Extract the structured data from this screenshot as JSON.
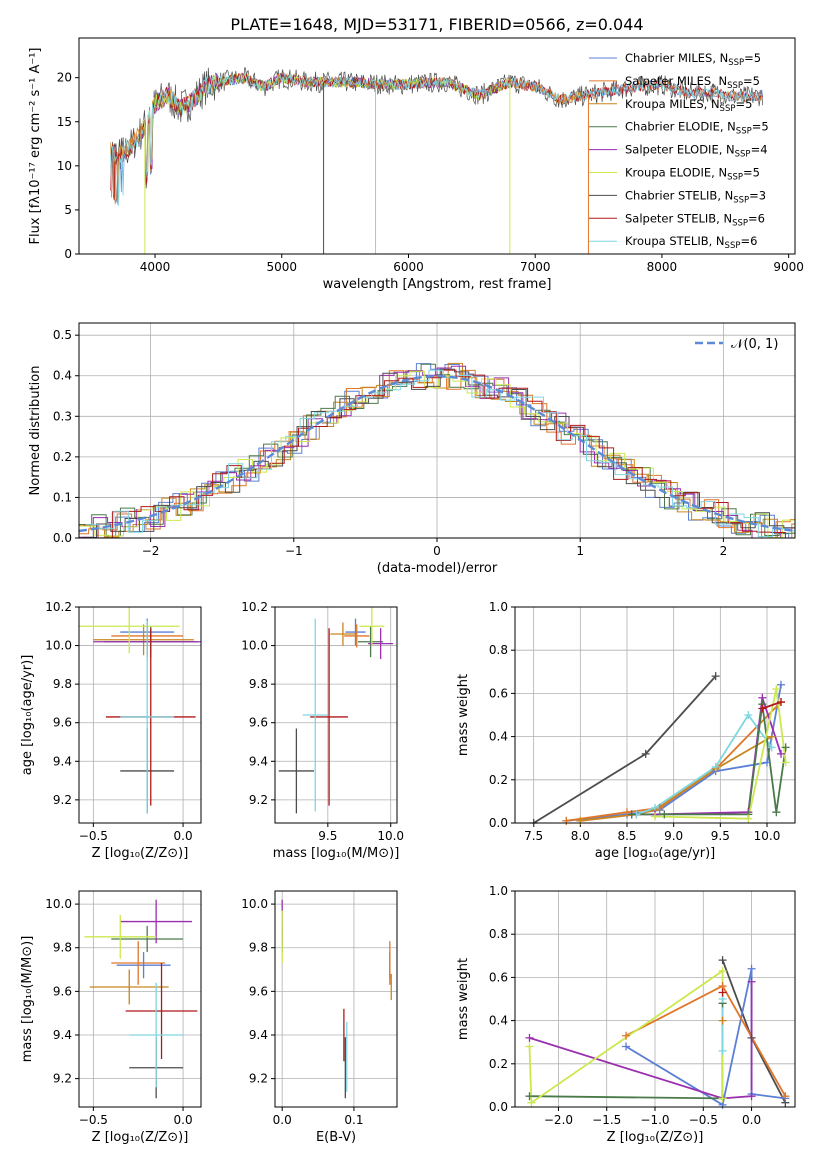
{
  "figure_title": "PLATE=1648, MJD=53171, FIBERID=0566, z=0.044",
  "colors": {
    "chabrier_miles": "#5b7fd6",
    "salpeter_miles": "#e0762a",
    "kroupa_miles": "#c9861e",
    "chabrier_elodie": "#4a7a4a",
    "salpeter_elodie": "#9a2fb0",
    "kroupa_elodie": "#cbe84e",
    "chabrier_stelib": "#4d4d4d",
    "salpeter_stelib": "#b0181a",
    "kroupa_stelib": "#7fd6e0",
    "normal_curve": "#5b8bd6",
    "grid": "#b0b0b0"
  },
  "chart_data": [
    {
      "id": "spectrum",
      "type": "line",
      "title": "PLATE=1648, MJD=53171, FIBERID=0566, z=0.044",
      "xlabel": "wavelength [Angstrom, rest frame]",
      "ylabel": "Flux [fλ10⁻¹⁷ erg cm⁻² s⁻¹ A⁻¹]",
      "xlim": [
        3400,
        9050
      ],
      "ylim": [
        0,
        24.5
      ],
      "xticks": [
        4000,
        5000,
        6000,
        7000,
        8000,
        9000
      ],
      "yticks": [
        0,
        5,
        10,
        15,
        20
      ],
      "grid": false,
      "legend_position": "top-right",
      "continuum": [
        [
          3650,
          12
        ],
        [
          3700,
          11
        ],
        [
          3800,
          12
        ],
        [
          3900,
          14
        ],
        [
          4000,
          17
        ],
        [
          4100,
          18
        ],
        [
          4200,
          16.5
        ],
        [
          4300,
          17.5
        ],
        [
          4400,
          19
        ],
        [
          4500,
          19.5
        ],
        [
          4700,
          20
        ],
        [
          4861,
          19
        ],
        [
          5000,
          20
        ],
        [
          5200,
          19.5
        ],
        [
          5500,
          19.5
        ],
        [
          5900,
          19.2
        ],
        [
          6300,
          19.5
        ],
        [
          6563,
          18
        ],
        [
          6800,
          19.5
        ],
        [
          7000,
          19
        ],
        [
          7200,
          17.5
        ],
        [
          7600,
          18.5
        ],
        [
          7800,
          19
        ],
        [
          8000,
          19.2
        ],
        [
          8200,
          18.3
        ],
        [
          8400,
          18.3
        ],
        [
          8600,
          17.8
        ],
        [
          8800,
          18
        ]
      ],
      "series": [
        {
          "name": "Chabrier MILES, N_SSP=5",
          "color_key": "chabrier_miles",
          "xrange": [
            3650,
            8800
          ]
        },
        {
          "name": "Salpeter MILES, N_SSP=5",
          "color_key": "salpeter_miles",
          "xrange": [
            3650,
            8800
          ]
        },
        {
          "name": "Kroupa MILES, N_SSP=5",
          "color_key": "kroupa_miles",
          "xrange": [
            3650,
            7400
          ]
        },
        {
          "name": "Chabrier ELODIE, N_SSP=5",
          "color_key": "chabrier_elodie",
          "xrange": [
            3900,
            6800
          ]
        },
        {
          "name": "Salpeter ELODIE, N_SSP=4",
          "color_key": "salpeter_elodie",
          "xrange": [
            3900,
            6800
          ]
        },
        {
          "name": "Kroupa ELODIE, N_SSP=5",
          "color_key": "kroupa_elodie",
          "xrange": [
            3900,
            6800
          ]
        },
        {
          "name": "Chabrier STELIB, N_SSP=3",
          "color_key": "chabrier_stelib",
          "xrange": [
            3650,
            8800
          ]
        },
        {
          "name": "Salpeter STELIB, N_SSP=6",
          "color_key": "salpeter_stelib",
          "xrange": [
            3650,
            8800
          ]
        },
        {
          "name": "Kroupa STELIB, N_SSP=6",
          "color_key": "kroupa_stelib",
          "xrange": [
            3650,
            8800
          ]
        }
      ],
      "drops": [
        {
          "x": 3920,
          "color_key": "kroupa_elodie"
        },
        {
          "x": 5330,
          "color_key": "chabrier_stelib"
        },
        {
          "x": 5740,
          "color_key": "kroupa_stelib"
        },
        {
          "x": 6800,
          "color_key": "kroupa_elodie"
        },
        {
          "x": 7420,
          "color_key": "salpeter_miles"
        }
      ]
    },
    {
      "id": "residuals",
      "type": "line",
      "xlabel": "(data-model)/error",
      "ylabel": "Normed distribution",
      "xlim": [
        -2.5,
        2.5
      ],
      "ylim": [
        0,
        0.53
      ],
      "xticks": [
        -2,
        -1,
        0,
        1,
        2
      ],
      "yticks": [
        0.0,
        0.1,
        0.2,
        0.3,
        0.4,
        0.5
      ],
      "grid": true,
      "legend_position": "top-right",
      "series": [
        {
          "name": "𝒩(0, 1)",
          "color_key": "normal_curve",
          "style": "dashed"
        }
      ],
      "histograms": [
        "chabrier_miles",
        "salpeter_miles",
        "kroupa_miles",
        "chabrier_elodie",
        "salpeter_elodie",
        "kroupa_elodie",
        "chabrier_stelib",
        "salpeter_stelib",
        "kroupa_stelib"
      ]
    },
    {
      "id": "age_vs_z",
      "type": "scatter",
      "xlabel": "Z [log₁₀(Z/Z⊙)]",
      "ylabel": "age  [log₁₀(age/yr)]",
      "xlim": [
        -0.58,
        0.1
      ],
      "ylim": [
        9.08,
        10.2
      ],
      "xticks": [
        -0.5,
        0.0
      ],
      "yticks": [
        9.2,
        9.4,
        9.6,
        9.8,
        10.0,
        10.2
      ],
      "grid": true,
      "points": [
        {
          "color_key": "chabrier_miles",
          "x": -0.2,
          "y": 10.07,
          "xerr": 0.15,
          "yerr": 0.07
        },
        {
          "color_key": "salpeter_miles",
          "x": -0.2,
          "y": 10.05,
          "xerr": 0.2,
          "yerr": 0.06
        },
        {
          "color_key": "kroupa_miles",
          "x": -0.22,
          "y": 10.03,
          "xerr": 0.28,
          "yerr": 0.08
        },
        {
          "color_key": "chabrier_elodie",
          "x": -0.18,
          "y": 10.02,
          "xerr": 0.26,
          "yerr": 0.08
        },
        {
          "color_key": "salpeter_elodie",
          "x": -0.2,
          "y": 10.02,
          "xerr": 0.3,
          "yerr": 0.08
        },
        {
          "color_key": "kroupa_elodie",
          "x": -0.3,
          "y": 10.1,
          "xerr": 0.28,
          "yerr": 0.14
        },
        {
          "color_key": "chabrier_stelib",
          "x": -0.2,
          "y": 9.35,
          "xerr": 0.15,
          "yerr": 0.22
        },
        {
          "color_key": "salpeter_stelib",
          "x": -0.18,
          "y": 9.63,
          "xerr": 0.25,
          "yerr": 0.46
        },
        {
          "color_key": "kroupa_stelib",
          "x": -0.2,
          "y": 9.63,
          "xerr": 0.15,
          "yerr": 0.5
        }
      ]
    },
    {
      "id": "age_vs_mass",
      "type": "scatter",
      "xlabel": "mass [log₁₀(M/M⊙)]",
      "ylim": [
        9.08,
        10.2
      ],
      "xlim": [
        9.08,
        10.05
      ],
      "xticks": [
        9.5,
        10.0
      ],
      "yticks": [
        9.2,
        9.4,
        9.6,
        9.8,
        10.0,
        10.2
      ],
      "grid": true,
      "points": [
        {
          "color_key": "chabrier_miles",
          "x": 9.72,
          "y": 10.07,
          "xerr": 0.08,
          "yerr": 0.07
        },
        {
          "color_key": "salpeter_miles",
          "x": 9.73,
          "y": 10.05,
          "xerr": 0.1,
          "yerr": 0.06
        },
        {
          "color_key": "kroupa_miles",
          "x": 9.62,
          "y": 10.06,
          "xerr": 0.1,
          "yerr": 0.06
        },
        {
          "color_key": "chabrier_elodie",
          "x": 9.84,
          "y": 10.02,
          "xerr": 0.1,
          "yerr": 0.08
        },
        {
          "color_key": "salpeter_elodie",
          "x": 9.92,
          "y": 10.01,
          "xerr": 0.1,
          "yerr": 0.08
        },
        {
          "color_key": "kroupa_elodie",
          "x": 9.85,
          "y": 10.1,
          "xerr": 0.1,
          "yerr": 0.1
        },
        {
          "color_key": "chabrier_stelib",
          "x": 9.25,
          "y": 9.35,
          "xerr": 0.14,
          "yerr": 0.22
        },
        {
          "color_key": "salpeter_stelib",
          "x": 9.51,
          "y": 9.63,
          "xerr": 0.15,
          "yerr": 0.46
        },
        {
          "color_key": "kroupa_stelib",
          "x": 9.4,
          "y": 9.64,
          "xerr": 0.1,
          "yerr": 0.5
        }
      ]
    },
    {
      "id": "mass_weight_vs_age",
      "type": "line",
      "xlabel": "age  [log₁₀(age/yr)]",
      "ylabel": "mass weight",
      "xlim": [
        7.3,
        10.3
      ],
      "ylim": [
        0.0,
        1.0
      ],
      "xticks": [
        7.5,
        8.0,
        8.5,
        9.0,
        9.5,
        10.0
      ],
      "yticks": [
        0.0,
        0.2,
        0.4,
        0.6,
        0.8,
        1.0
      ],
      "grid": true,
      "series": [
        {
          "color_key": "chabrier_stelib",
          "points": [
            [
              7.5,
              0.0
            ],
            [
              8.7,
              0.32
            ],
            [
              9.45,
              0.68
            ]
          ]
        },
        {
          "color_key": "chabrier_miles",
          "points": [
            [
              7.85,
              0.01
            ],
            [
              8.5,
              0.04
            ],
            [
              8.85,
              0.06
            ],
            [
              9.45,
              0.24
            ],
            [
              10.0,
              0.28
            ],
            [
              10.15,
              0.64
            ]
          ]
        },
        {
          "color_key": "salpeter_miles",
          "points": [
            [
              7.85,
              0.01
            ],
            [
              8.5,
              0.05
            ],
            [
              8.85,
              0.07
            ],
            [
              9.45,
              0.25
            ],
            [
              10.15,
              0.56
            ]
          ]
        },
        {
          "color_key": "kroupa_miles",
          "points": [
            [
              8.0,
              0.01
            ],
            [
              8.6,
              0.04
            ],
            [
              8.8,
              0.06
            ],
            [
              9.45,
              0.25
            ],
            [
              10.05,
              0.4
            ]
          ]
        },
        {
          "color_key": "kroupa_stelib",
          "points": [
            [
              8.6,
              0.04
            ],
            [
              8.8,
              0.07
            ],
            [
              9.45,
              0.26
            ],
            [
              9.8,
              0.5
            ],
            [
              10.05,
              0.35
            ]
          ]
        },
        {
          "color_key": "salpeter_elodie",
          "points": [
            [
              8.55,
              0.04
            ],
            [
              8.8,
              0.04
            ],
            [
              9.8,
              0.05
            ],
            [
              9.95,
              0.58
            ],
            [
              10.15,
              0.32
            ]
          ]
        },
        {
          "color_key": "chabrier_elodie",
          "points": [
            [
              8.55,
              0.04
            ],
            [
              8.9,
              0.04
            ],
            [
              9.8,
              0.04
            ],
            [
              9.95,
              0.55
            ],
            [
              10.1,
              0.05
            ],
            [
              10.2,
              0.35
            ]
          ]
        },
        {
          "color_key": "kroupa_elodie",
          "points": [
            [
              8.8,
              0.03
            ],
            [
              9.8,
              0.02
            ],
            [
              10.1,
              0.62
            ],
            [
              10.2,
              0.28
            ]
          ]
        },
        {
          "color_key": "salpeter_stelib",
          "points": [
            [
              9.95,
              0.53
            ],
            [
              10.15,
              0.56
            ]
          ]
        }
      ]
    },
    {
      "id": "mass_vs_z",
      "type": "scatter",
      "xlabel": "Z [log₁₀(Z/Z⊙)]",
      "ylabel": "mass [log₁₀(M/M⊙)]",
      "xlim": [
        -0.58,
        0.1
      ],
      "ylim": [
        9.07,
        10.06
      ],
      "xticks": [
        -0.5,
        0.0
      ],
      "yticks": [
        9.2,
        9.4,
        9.6,
        9.8,
        10.0
      ],
      "grid": true,
      "points": [
        {
          "color_key": "chabrier_miles",
          "x": -0.22,
          "y": 9.72,
          "xerr": 0.15,
          "yerr": 0.06
        },
        {
          "color_key": "salpeter_miles",
          "x": -0.25,
          "y": 9.73,
          "xerr": 0.15,
          "yerr": 0.1
        },
        {
          "color_key": "kroupa_miles",
          "x": -0.3,
          "y": 9.62,
          "xerr": 0.22,
          "yerr": 0.08
        },
        {
          "color_key": "chabrier_elodie",
          "x": -0.2,
          "y": 9.84,
          "xerr": 0.2,
          "yerr": 0.06
        },
        {
          "color_key": "salpeter_elodie",
          "x": -0.15,
          "y": 9.92,
          "xerr": 0.2,
          "yerr": 0.1
        },
        {
          "color_key": "kroupa_elodie",
          "x": -0.35,
          "y": 9.85,
          "xerr": 0.2,
          "yerr": 0.1
        },
        {
          "color_key": "chabrier_stelib",
          "x": -0.15,
          "y": 9.25,
          "xerr": 0.15,
          "yerr": 0.14
        },
        {
          "color_key": "salpeter_stelib",
          "x": -0.12,
          "y": 9.51,
          "xerr": 0.2,
          "yerr": 0.22
        },
        {
          "color_key": "kroupa_stelib",
          "x": -0.15,
          "y": 9.4,
          "xerr": 0.15,
          "yerr": 0.24
        }
      ]
    },
    {
      "id": "mass_vs_ebv",
      "type": "scatter",
      "xlabel": "E(B-V)",
      "xlim": [
        -0.01,
        0.16
      ],
      "ylim": [
        9.07,
        10.06
      ],
      "xticks": [
        0.0,
        0.1
      ],
      "yticks": [
        9.2,
        9.4,
        9.6,
        9.8,
        10.0
      ],
      "grid": true,
      "points": [
        {
          "color_key": "chabrier_miles",
          "x": 0.15,
          "y": 9.72,
          "yerr": 0.06
        },
        {
          "color_key": "salpeter_miles",
          "x": 0.15,
          "y": 9.73,
          "yerr": 0.1
        },
        {
          "color_key": "kroupa_miles",
          "x": 0.152,
          "y": 9.62,
          "yerr": 0.06
        },
        {
          "color_key": "chabrier_elodie",
          "x": 0.0,
          "y": 9.84,
          "yerr": 0.06
        },
        {
          "color_key": "salpeter_elodie",
          "x": 0.0,
          "y": 9.92,
          "yerr": 0.1
        },
        {
          "color_key": "kroupa_elodie",
          "x": 0.0,
          "y": 9.85,
          "yerr": 0.12
        },
        {
          "color_key": "chabrier_stelib",
          "x": 0.088,
          "y": 9.25,
          "yerr": 0.14
        },
        {
          "color_key": "salpeter_stelib",
          "x": 0.086,
          "y": 9.4,
          "yerr": 0.12
        },
        {
          "color_key": "kroupa_stelib",
          "x": 0.09,
          "y": 9.3,
          "yerr": 0.16
        }
      ]
    },
    {
      "id": "mass_weight_vs_z",
      "type": "line",
      "xlabel": "Z [log₁₀(Z/Z⊙)]",
      "ylabel": "mass weight",
      "xlim": [
        -2.45,
        0.45
      ],
      "ylim": [
        0.0,
        1.0
      ],
      "xticks": [
        -2.0,
        -1.5,
        -1.0,
        -0.5,
        0.0
      ],
      "yticks": [
        0.0,
        0.2,
        0.4,
        0.6,
        0.8,
        1.0
      ],
      "grid": true,
      "series": [
        {
          "color_key": "chabrier_stelib",
          "points": [
            [
              -0.3,
              0.68
            ],
            [
              0.0,
              0.32
            ],
            [
              0.35,
              0.02
            ]
          ]
        },
        {
          "color_key": "chabrier_miles",
          "points": [
            [
              -1.3,
              0.28
            ],
            [
              -0.3,
              0.01
            ],
            [
              0.0,
              0.64
            ],
            [
              0.0,
              0.06
            ],
            [
              0.35,
              0.04
            ]
          ]
        },
        {
          "color_key": "salpeter_miles",
          "points": [
            [
              -1.3,
              0.33
            ],
            [
              -0.3,
              0.56
            ],
            [
              0.35,
              0.05
            ]
          ]
        },
        {
          "color_key": "kroupa_miles",
          "points": [
            [
              -0.3,
              0.4
            ],
            [
              -0.3,
              0.04
            ]
          ]
        },
        {
          "color_key": "salpeter_elodie",
          "points": [
            [
              -2.3,
              0.32
            ],
            [
              -0.3,
              0.04
            ],
            [
              0.0,
              0.05
            ],
            [
              0.0,
              0.58
            ]
          ]
        },
        {
          "color_key": "chabrier_elodie",
          "points": [
            [
              -2.3,
              0.05
            ],
            [
              -0.3,
              0.04
            ],
            [
              -0.3,
              0.48
            ]
          ]
        },
        {
          "color_key": "kroupa_elodie",
          "points": [
            [
              -2.3,
              0.28
            ],
            [
              -2.28,
              0.02
            ],
            [
              -0.3,
              0.63
            ],
            [
              -0.3,
              0.04
            ]
          ]
        },
        {
          "color_key": "kroupa_stelib",
          "points": [
            [
              -0.3,
              0.5
            ],
            [
              -0.3,
              0.26
            ]
          ]
        },
        {
          "color_key": "salpeter_stelib",
          "points": [
            [
              -0.3,
              0.53
            ]
          ]
        }
      ]
    }
  ]
}
